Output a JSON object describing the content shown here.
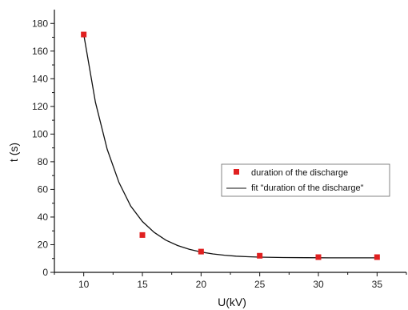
{
  "chart_data": {
    "type": "scatter",
    "xlabel": "U(kV)",
    "ylabel": "t (s)",
    "xlim": [
      7.5,
      37.5
    ],
    "ylim": [
      0,
      190
    ],
    "x_ticks": [
      10,
      15,
      20,
      25,
      30,
      35
    ],
    "y_ticks": [
      0,
      20,
      40,
      60,
      80,
      100,
      120,
      140,
      160,
      180
    ],
    "grid": false,
    "legend_position": "center-right",
    "series": [
      {
        "name": "duration of the discharge",
        "kind": "scatter",
        "marker": "square",
        "color": "#e02020",
        "x": [
          10,
          15,
          20,
          25,
          30,
          35
        ],
        "y": [
          172,
          27,
          15,
          12,
          11,
          11
        ]
      },
      {
        "name": "fit \"duration of the discharge\"",
        "kind": "line",
        "color": "#111111",
        "x": [
          10,
          11,
          12,
          13,
          14,
          15,
          16,
          17,
          18,
          19,
          20,
          21,
          22,
          23,
          24,
          25,
          27,
          29,
          31,
          33,
          35
        ],
        "y": [
          172,
          123,
          89,
          65,
          48,
          36.8,
          28.9,
          23.3,
          19.4,
          16.6,
          14.7,
          13.3,
          12.4,
          11.7,
          11.3,
          11.0,
          10.7,
          10.6,
          10.5,
          10.5,
          10.5
        ]
      }
    ]
  }
}
